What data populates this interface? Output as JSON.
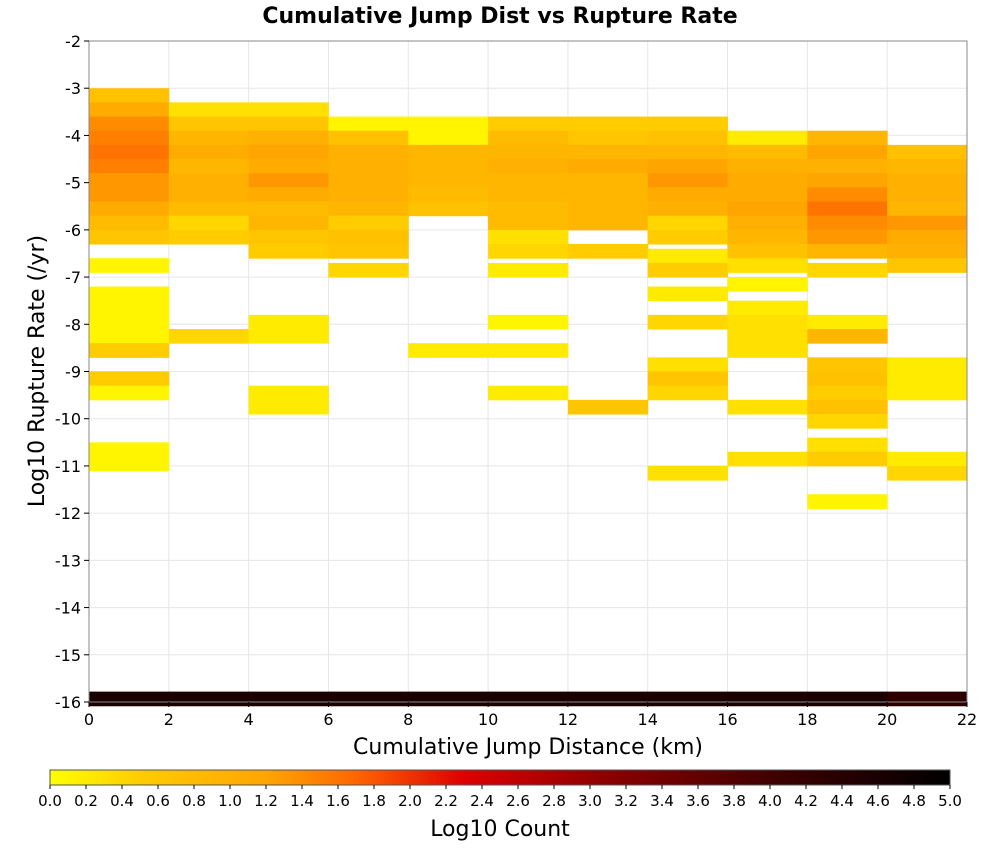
{
  "chart_data": {
    "type": "heatmap",
    "title": "Cumulative Jump Dist vs Rupture Rate",
    "xlabel": "Cumulative Jump Distance (km)",
    "ylabel": "Log10 Rupture Rate (/yr)",
    "xlim": [
      0,
      22
    ],
    "ylim": [
      -16,
      -2
    ],
    "x_ticks": [
      0,
      2,
      4,
      6,
      8,
      10,
      12,
      14,
      16,
      18,
      20,
      22
    ],
    "y_ticks": [
      -2,
      -3,
      -4,
      -5,
      -6,
      -7,
      -8,
      -9,
      -10,
      -11,
      -12,
      -13,
      -14,
      -15,
      -16
    ],
    "x_bin_width": 2,
    "y_bin_height": 0.3,
    "grid": true,
    "colorbar": {
      "label": "Log10 Count",
      "min": 0.0,
      "max": 5.0,
      "ticks": [
        "0.0",
        "0.2",
        "0.4",
        "0.6",
        "0.8",
        "1.0",
        "1.2",
        "1.4",
        "1.6",
        "1.8",
        "2.0",
        "2.2",
        "2.4",
        "2.6",
        "2.8",
        "3.0",
        "3.2",
        "3.4",
        "3.6",
        "3.8",
        "4.0",
        "4.2",
        "4.4",
        "4.6",
        "4.8",
        "5.0"
      ],
      "placement": "bottom",
      "colormap": [
        "#ffff00",
        "#ffa500",
        "#ff6600",
        "#dd0000",
        "#8b0000",
        "#3a0000",
        "#000000"
      ]
    },
    "cells": [
      {
        "x": 1,
        "y": -3.15,
        "v": 0.7
      },
      {
        "x": 1,
        "y": -3.45,
        "v": 1.1
      },
      {
        "x": 1,
        "y": -3.75,
        "v": 1.4
      },
      {
        "x": 1,
        "y": -4.05,
        "v": 1.5
      },
      {
        "x": 1,
        "y": -4.35,
        "v": 1.6
      },
      {
        "x": 1,
        "y": -4.65,
        "v": 1.5
      },
      {
        "x": 1,
        "y": -4.95,
        "v": 1.3
      },
      {
        "x": 1,
        "y": -5.25,
        "v": 1.3
      },
      {
        "x": 1,
        "y": -5.55,
        "v": 1.1
      },
      {
        "x": 1,
        "y": -5.85,
        "v": 0.8
      },
      {
        "x": 1,
        "y": -6.15,
        "v": 0.6
      },
      {
        "x": 1,
        "y": -6.75,
        "v": 0.1
      },
      {
        "x": 1,
        "y": -7.35,
        "v": 0.1
      },
      {
        "x": 1,
        "y": -7.65,
        "v": 0.1
      },
      {
        "x": 1,
        "y": -7.95,
        "v": 0.1
      },
      {
        "x": 1,
        "y": -8.25,
        "v": 0.1
      },
      {
        "x": 1,
        "y": -8.55,
        "v": 0.5
      },
      {
        "x": 1,
        "y": -9.15,
        "v": 0.5
      },
      {
        "x": 1,
        "y": -9.45,
        "v": 0.1
      },
      {
        "x": 1,
        "y": -10.65,
        "v": 0.1
      },
      {
        "x": 1,
        "y": -10.95,
        "v": 0.1
      },
      {
        "x": 3,
        "y": -3.45,
        "v": 0.3
      },
      {
        "x": 3,
        "y": -3.75,
        "v": 0.6
      },
      {
        "x": 3,
        "y": -4.05,
        "v": 0.9
      },
      {
        "x": 3,
        "y": -4.35,
        "v": 1.1
      },
      {
        "x": 3,
        "y": -4.65,
        "v": 0.9
      },
      {
        "x": 3,
        "y": -4.95,
        "v": 1.0
      },
      {
        "x": 3,
        "y": -5.25,
        "v": 1.0
      },
      {
        "x": 3,
        "y": -5.55,
        "v": 0.8
      },
      {
        "x": 3,
        "y": -5.85,
        "v": 0.4
      },
      {
        "x": 3,
        "y": -6.15,
        "v": 0.5
      },
      {
        "x": 3,
        "y": -8.25,
        "v": 0.4
      },
      {
        "x": 5,
        "y": -3.45,
        "v": 0.3
      },
      {
        "x": 5,
        "y": -3.75,
        "v": 0.6
      },
      {
        "x": 5,
        "y": -4.05,
        "v": 1.0
      },
      {
        "x": 5,
        "y": -4.35,
        "v": 1.2
      },
      {
        "x": 5,
        "y": -4.65,
        "v": 1.1
      },
      {
        "x": 5,
        "y": -4.95,
        "v": 1.3
      },
      {
        "x": 5,
        "y": -5.25,
        "v": 1.1
      },
      {
        "x": 5,
        "y": -5.55,
        "v": 0.8
      },
      {
        "x": 5,
        "y": -5.85,
        "v": 0.9
      },
      {
        "x": 5,
        "y": -6.15,
        "v": 0.6
      },
      {
        "x": 5,
        "y": -6.45,
        "v": 0.5
      },
      {
        "x": 5,
        "y": -7.95,
        "v": 0.2
      },
      {
        "x": 5,
        "y": -8.25,
        "v": 0.2
      },
      {
        "x": 5,
        "y": -9.45,
        "v": 0.2
      },
      {
        "x": 5,
        "y": -9.75,
        "v": 0.2
      },
      {
        "x": 7,
        "y": -3.75,
        "v": 0.1
      },
      {
        "x": 7,
        "y": -4.05,
        "v": 0.7
      },
      {
        "x": 7,
        "y": -4.35,
        "v": 1.0
      },
      {
        "x": 7,
        "y": -4.65,
        "v": 1.0
      },
      {
        "x": 7,
        "y": -4.95,
        "v": 1.0
      },
      {
        "x": 7,
        "y": -5.25,
        "v": 1.0
      },
      {
        "x": 7,
        "y": -5.55,
        "v": 0.9
      },
      {
        "x": 7,
        "y": -5.85,
        "v": 0.5
      },
      {
        "x": 7,
        "y": -6.15,
        "v": 0.7
      },
      {
        "x": 7,
        "y": -6.45,
        "v": 0.6
      },
      {
        "x": 7,
        "y": -6.85,
        "v": 0.4
      },
      {
        "x": 9,
        "y": -3.75,
        "v": 0.1
      },
      {
        "x": 9,
        "y": -4.05,
        "v": 0.1
      },
      {
        "x": 9,
        "y": -4.35,
        "v": 0.9
      },
      {
        "x": 9,
        "y": -4.65,
        "v": 0.9
      },
      {
        "x": 9,
        "y": -4.95,
        "v": 0.9
      },
      {
        "x": 9,
        "y": -5.25,
        "v": 0.8
      },
      {
        "x": 9,
        "y": -5.55,
        "v": 0.7
      },
      {
        "x": 9,
        "y": -8.55,
        "v": 0.2
      },
      {
        "x": 11,
        "y": -3.75,
        "v": 0.5
      },
      {
        "x": 11,
        "y": -4.05,
        "v": 0.8
      },
      {
        "x": 11,
        "y": -4.35,
        "v": 0.9
      },
      {
        "x": 11,
        "y": -4.65,
        "v": 1.0
      },
      {
        "x": 11,
        "y": -4.95,
        "v": 0.9
      },
      {
        "x": 11,
        "y": -5.25,
        "v": 0.9
      },
      {
        "x": 11,
        "y": -5.55,
        "v": 0.8
      },
      {
        "x": 11,
        "y": -5.85,
        "v": 0.8
      },
      {
        "x": 11,
        "y": -6.15,
        "v": 0.3
      },
      {
        "x": 11,
        "y": -6.45,
        "v": 0.4
      },
      {
        "x": 11,
        "y": -6.85,
        "v": 0.2
      },
      {
        "x": 11,
        "y": -7.95,
        "v": 0.1
      },
      {
        "x": 11,
        "y": -8.55,
        "v": 0.2
      },
      {
        "x": 11,
        "y": -9.45,
        "v": 0.2
      },
      {
        "x": 13,
        "y": -3.75,
        "v": 0.5
      },
      {
        "x": 13,
        "y": -4.05,
        "v": 0.6
      },
      {
        "x": 13,
        "y": -4.35,
        "v": 0.9
      },
      {
        "x": 13,
        "y": -4.65,
        "v": 1.1
      },
      {
        "x": 13,
        "y": -4.95,
        "v": 0.9
      },
      {
        "x": 13,
        "y": -5.25,
        "v": 0.9
      },
      {
        "x": 13,
        "y": -5.55,
        "v": 0.9
      },
      {
        "x": 13,
        "y": -5.85,
        "v": 0.9
      },
      {
        "x": 13,
        "y": -6.45,
        "v": 0.5
      },
      {
        "x": 13,
        "y": -9.75,
        "v": 0.6
      },
      {
        "x": 15,
        "y": -3.75,
        "v": 0.5
      },
      {
        "x": 15,
        "y": -4.05,
        "v": 0.7
      },
      {
        "x": 15,
        "y": -4.35,
        "v": 0.9
      },
      {
        "x": 15,
        "y": -4.65,
        "v": 1.2
      },
      {
        "x": 15,
        "y": -4.95,
        "v": 1.3
      },
      {
        "x": 15,
        "y": -5.25,
        "v": 1.1
      },
      {
        "x": 15,
        "y": -5.55,
        "v": 1.0
      },
      {
        "x": 15,
        "y": -5.85,
        "v": 0.4
      },
      {
        "x": 15,
        "y": -6.15,
        "v": 0.5
      },
      {
        "x": 15,
        "y": -6.55,
        "v": 0.2
      },
      {
        "x": 15,
        "y": -6.85,
        "v": 0.5
      },
      {
        "x": 15,
        "y": -7.35,
        "v": 0.2
      },
      {
        "x": 15,
        "y": -7.95,
        "v": 0.4
      },
      {
        "x": 15,
        "y": -8.85,
        "v": 0.3
      },
      {
        "x": 15,
        "y": -9.15,
        "v": 0.6
      },
      {
        "x": 15,
        "y": -9.45,
        "v": 0.4
      },
      {
        "x": 15,
        "y": -11.15,
        "v": 0.3
      },
      {
        "x": 17,
        "y": -4.05,
        "v": 0.2
      },
      {
        "x": 17,
        "y": -4.35,
        "v": 0.8
      },
      {
        "x": 17,
        "y": -4.65,
        "v": 1.0
      },
      {
        "x": 17,
        "y": -4.95,
        "v": 1.1
      },
      {
        "x": 17,
        "y": -5.25,
        "v": 1.1
      },
      {
        "x": 17,
        "y": -5.55,
        "v": 1.2
      },
      {
        "x": 17,
        "y": -5.85,
        "v": 1.0
      },
      {
        "x": 17,
        "y": -6.15,
        "v": 0.9
      },
      {
        "x": 17,
        "y": -6.45,
        "v": 0.7
      },
      {
        "x": 17,
        "y": -6.75,
        "v": 0.3
      },
      {
        "x": 17,
        "y": -7.15,
        "v": 0.1
      },
      {
        "x": 17,
        "y": -7.65,
        "v": 0.2
      },
      {
        "x": 17,
        "y": -7.95,
        "v": 0.3
      },
      {
        "x": 17,
        "y": -8.25,
        "v": 0.3
      },
      {
        "x": 17,
        "y": -8.55,
        "v": 0.3
      },
      {
        "x": 17,
        "y": -9.75,
        "v": 0.3
      },
      {
        "x": 17,
        "y": -10.85,
        "v": 0.3
      },
      {
        "x": 19,
        "y": -4.05,
        "v": 0.9
      },
      {
        "x": 19,
        "y": -4.35,
        "v": 1.2
      },
      {
        "x": 19,
        "y": -4.65,
        "v": 1.0
      },
      {
        "x": 19,
        "y": -4.95,
        "v": 1.2
      },
      {
        "x": 19,
        "y": -5.25,
        "v": 1.4
      },
      {
        "x": 19,
        "y": -5.55,
        "v": 1.6
      },
      {
        "x": 19,
        "y": -5.85,
        "v": 1.4
      },
      {
        "x": 19,
        "y": -6.15,
        "v": 1.3
      },
      {
        "x": 19,
        "y": -6.45,
        "v": 0.9
      },
      {
        "x": 19,
        "y": -6.85,
        "v": 0.4
      },
      {
        "x": 19,
        "y": -7.95,
        "v": 0.2
      },
      {
        "x": 19,
        "y": -8.25,
        "v": 0.9
      },
      {
        "x": 19,
        "y": -8.85,
        "v": 0.6
      },
      {
        "x": 19,
        "y": -9.15,
        "v": 0.7
      },
      {
        "x": 19,
        "y": -9.45,
        "v": 0.5
      },
      {
        "x": 19,
        "y": -9.75,
        "v": 0.7
      },
      {
        "x": 19,
        "y": -10.05,
        "v": 0.4
      },
      {
        "x": 19,
        "y": -10.55,
        "v": 0.3
      },
      {
        "x": 19,
        "y": -10.85,
        "v": 0.5
      },
      {
        "x": 19,
        "y": -11.75,
        "v": 0.1
      },
      {
        "x": 21,
        "y": -4.35,
        "v": 0.7
      },
      {
        "x": 21,
        "y": -4.65,
        "v": 0.9
      },
      {
        "x": 21,
        "y": -4.95,
        "v": 1.0
      },
      {
        "x": 21,
        "y": -5.25,
        "v": 1.0
      },
      {
        "x": 21,
        "y": -5.55,
        "v": 0.9
      },
      {
        "x": 21,
        "y": -5.85,
        "v": 1.3
      },
      {
        "x": 21,
        "y": -6.15,
        "v": 1.1
      },
      {
        "x": 21,
        "y": -6.45,
        "v": 1.0
      },
      {
        "x": 21,
        "y": -6.75,
        "v": 0.6
      },
      {
        "x": 21,
        "y": -8.85,
        "v": 0.2
      },
      {
        "x": 21,
        "y": -9.15,
        "v": 0.2
      },
      {
        "x": 21,
        "y": -9.45,
        "v": 0.2
      },
      {
        "x": 21,
        "y": -10.85,
        "v": 0.2
      },
      {
        "x": 21,
        "y": -11.15,
        "v": 0.4
      },
      {
        "x": 1,
        "y": -15.93,
        "v": 4.6
      },
      {
        "x": 3,
        "y": -15.93,
        "v": 4.6
      },
      {
        "x": 5,
        "y": -15.93,
        "v": 4.6
      },
      {
        "x": 7,
        "y": -15.93,
        "v": 4.6
      },
      {
        "x": 9,
        "y": -15.93,
        "v": 4.6
      },
      {
        "x": 11,
        "y": -15.93,
        "v": 4.6
      },
      {
        "x": 13,
        "y": -15.93,
        "v": 4.6
      },
      {
        "x": 15,
        "y": -15.93,
        "v": 4.6
      },
      {
        "x": 17,
        "y": -15.93,
        "v": 4.6
      },
      {
        "x": 19,
        "y": -15.93,
        "v": 4.6
      },
      {
        "x": 21,
        "y": -15.93,
        "v": 4.3
      }
    ]
  }
}
